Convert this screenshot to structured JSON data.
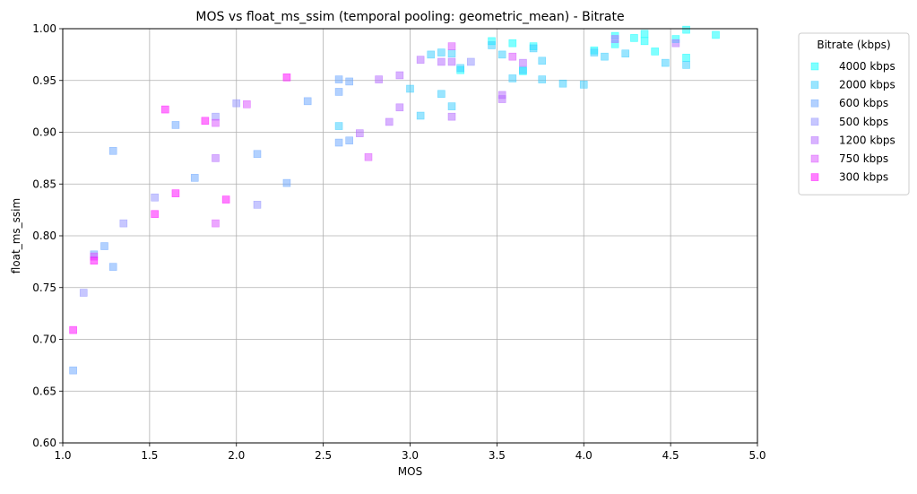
{
  "chart_data": {
    "type": "scatter",
    "title": "MOS vs float_ms_ssim (temporal pooling: geometric_mean) - Bitrate",
    "xlabel": "MOS",
    "ylabel": "float_ms_ssim",
    "xlim": [
      1.0,
      5.0
    ],
    "ylim": [
      0.6,
      1.0
    ],
    "xticks": [
      "1.0",
      "1.5",
      "2.0",
      "2.5",
      "3.0",
      "3.5",
      "4.0",
      "4.5",
      "5.0"
    ],
    "yticks": [
      "0.60",
      "0.65",
      "0.70",
      "0.75",
      "0.80",
      "0.85",
      "0.90",
      "0.95",
      "1.00"
    ],
    "grid": true,
    "marker": "square",
    "legend": {
      "title": "Bitrate (kbps)",
      "placement": "outside-right-top"
    },
    "series": [
      {
        "name": "4000 kbps",
        "color": "#00ffff",
        "points": [
          [
            3.47,
            0.988
          ],
          [
            3.59,
            0.986
          ],
          [
            3.71,
            0.983
          ],
          [
            4.06,
            0.979
          ],
          [
            4.18,
            0.993
          ],
          [
            4.29,
            0.991
          ],
          [
            4.35,
            0.995
          ],
          [
            4.41,
            0.978
          ],
          [
            4.53,
            0.99
          ],
          [
            4.59,
            0.999
          ],
          [
            4.76,
            0.994
          ],
          [
            4.59,
            0.972
          ],
          [
            4.18,
            0.985
          ],
          [
            3.29,
            0.96
          ],
          [
            3.65,
            0.959
          ],
          [
            4.35,
            0.988
          ]
        ]
      },
      {
        "name": "2000 kbps",
        "color": "#33ccff",
        "points": [
          [
            3.12,
            0.975
          ],
          [
            3.18,
            0.977
          ],
          [
            3.24,
            0.976
          ],
          [
            3.29,
            0.962
          ],
          [
            3.47,
            0.984
          ],
          [
            3.53,
            0.975
          ],
          [
            3.59,
            0.952
          ],
          [
            3.76,
            0.969
          ],
          [
            3.76,
            0.951
          ],
          [
            3.88,
            0.947
          ],
          [
            4.0,
            0.946
          ],
          [
            4.12,
            0.973
          ],
          [
            4.24,
            0.976
          ],
          [
            4.47,
            0.967
          ],
          [
            4.59,
            0.965
          ],
          [
            3.0,
            0.942
          ],
          [
            3.06,
            0.916
          ],
          [
            3.18,
            0.937
          ],
          [
            3.24,
            0.925
          ],
          [
            2.59,
            0.906
          ],
          [
            3.71,
            0.981
          ],
          [
            4.06,
            0.977
          ],
          [
            3.65,
            0.96
          ]
        ]
      },
      {
        "name": "600 kbps",
        "color": "#66a3ff",
        "points": [
          [
            1.06,
            0.67
          ],
          [
            1.18,
            0.782
          ],
          [
            1.24,
            0.79
          ],
          [
            1.29,
            0.77
          ],
          [
            1.29,
            0.882
          ],
          [
            1.65,
            0.907
          ],
          [
            1.76,
            0.856
          ],
          [
            2.12,
            0.879
          ],
          [
            2.29,
            0.851
          ],
          [
            2.41,
            0.93
          ],
          [
            2.59,
            0.89
          ],
          [
            2.65,
            0.892
          ],
          [
            2.59,
            0.939
          ],
          [
            2.59,
            0.951
          ],
          [
            2.65,
            0.949
          ]
        ]
      },
      {
        "name": "500 kbps",
        "color": "#8f8fff",
        "points": [
          [
            1.12,
            0.745
          ],
          [
            1.35,
            0.812
          ],
          [
            1.53,
            0.837
          ],
          [
            1.88,
            0.915
          ],
          [
            2.0,
            0.928
          ],
          [
            2.12,
            0.83
          ],
          [
            3.35,
            0.968
          ]
        ]
      },
      {
        "name": "1200 kbps",
        "color": "#b266ff",
        "points": [
          [
            1.88,
            0.875
          ],
          [
            2.71,
            0.899
          ],
          [
            2.82,
            0.951
          ],
          [
            2.88,
            0.91
          ],
          [
            2.94,
            0.955
          ],
          [
            2.94,
            0.924
          ],
          [
            3.06,
            0.97
          ],
          [
            3.18,
            0.968
          ],
          [
            3.24,
            0.968
          ],
          [
            3.24,
            0.915
          ],
          [
            3.53,
            0.936
          ],
          [
            3.53,
            0.932
          ],
          [
            3.65,
            0.967
          ],
          [
            4.18,
            0.99
          ],
          [
            4.53,
            0.986
          ]
        ]
      },
      {
        "name": "750 kbps",
        "color": "#d94dff",
        "points": [
          [
            1.18,
            0.78
          ],
          [
            1.88,
            0.909
          ],
          [
            1.88,
            0.812
          ],
          [
            2.06,
            0.927
          ],
          [
            2.76,
            0.876
          ],
          [
            3.24,
            0.983
          ],
          [
            3.59,
            0.973
          ]
        ]
      },
      {
        "name": "300 kbps",
        "color": "#ff00ff",
        "points": [
          [
            1.06,
            0.709
          ],
          [
            1.18,
            0.776
          ],
          [
            1.53,
            0.821
          ],
          [
            1.59,
            0.922
          ],
          [
            1.65,
            0.841
          ],
          [
            1.82,
            0.911
          ],
          [
            1.94,
            0.835
          ],
          [
            2.29,
            0.953
          ]
        ]
      }
    ]
  }
}
